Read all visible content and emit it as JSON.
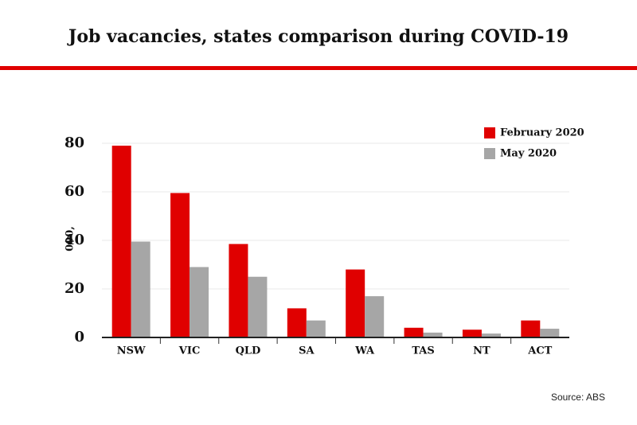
{
  "chart_data": {
    "type": "bar",
    "title": "Job vacancies, states comparison during COVID-19",
    "y_label": "000,",
    "source": "Source: ABS",
    "categories": [
      "NSW",
      "VIC",
      "QLD",
      "SA",
      "WA",
      "TAS",
      "NT",
      "ACT"
    ],
    "series": [
      {
        "name": "February 2020",
        "color": "#e00000",
        "values": [
          79,
          59.5,
          38.5,
          12,
          28,
          4,
          3.2,
          7
        ]
      },
      {
        "name": "May 2020",
        "color": "#a6a6a6",
        "values": [
          39.5,
          29,
          25,
          7,
          17,
          2,
          1.6,
          3.6
        ]
      }
    ],
    "ylim": [
      0,
      80
    ],
    "yticks": [
      0,
      20,
      40,
      60,
      80
    ],
    "grid": true,
    "legend": "top-right"
  }
}
